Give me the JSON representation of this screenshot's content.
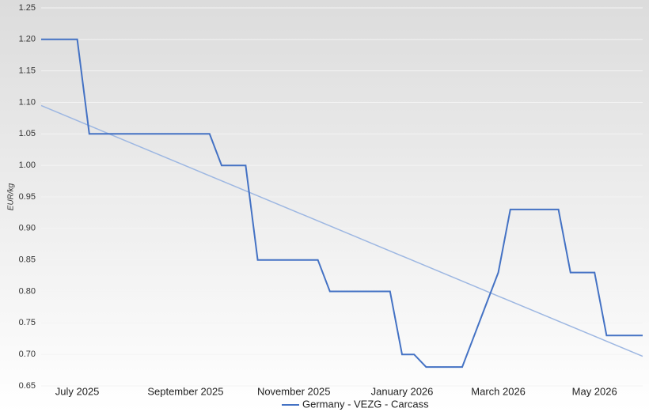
{
  "chart_data": {
    "type": "line",
    "y_label": "EUR/kg",
    "categories": [
      null,
      null,
      null,
      "July 2025",
      null,
      null,
      null,
      null,
      null,
      null,
      null,
      null,
      "September 2025",
      null,
      null,
      null,
      null,
      null,
      null,
      null,
      null,
      "November 2025",
      null,
      null,
      null,
      null,
      null,
      null,
      null,
      null,
      "January 2026",
      null,
      null,
      null,
      null,
      null,
      null,
      null,
      "March 2026",
      null,
      null,
      null,
      null,
      null,
      null,
      null,
      "May 2026",
      null,
      null,
      null,
      null
    ],
    "series": [
      {
        "name": "Germany - VEZG - Carcass",
        "color": "#4472c4",
        "values": [
          1.2,
          1.2,
          1.2,
          1.2,
          1.05,
          1.05,
          1.05,
          1.05,
          1.05,
          1.05,
          1.05,
          1.05,
          1.05,
          1.05,
          1.05,
          1.0,
          1.0,
          1.0,
          0.85,
          0.85,
          0.85,
          0.85,
          0.85,
          0.85,
          0.8,
          0.8,
          0.8,
          0.8,
          0.8,
          0.8,
          0.7,
          0.7,
          0.68,
          0.68,
          0.68,
          0.68,
          0.73,
          0.78,
          0.83,
          0.93,
          0.93,
          0.93,
          0.93,
          0.93,
          0.83,
          0.83,
          0.83,
          0.73,
          0.73,
          0.73,
          0.73
        ]
      }
    ],
    "trend": {
      "start": 1.095,
      "end": 0.697,
      "color": "#9db7e2"
    },
    "ylim": [
      0.65,
      1.25
    ],
    "yticks": [
      0.65,
      {
        "value": 0.7,
        "label": "0.70"
      },
      0.75,
      {
        "value": 0.8,
        "label": "0.80"
      },
      0.85,
      {
        "value": 0.9,
        "label": "0.90"
      },
      0.95,
      {
        "value": 1.0,
        "label": "1.00"
      },
      1.05,
      {
        "value": 1.1,
        "label": "1.10"
      },
      1.15,
      {
        "value": 1.2,
        "label": "1.20"
      },
      1.25
    ],
    "grid": true,
    "legend": "bottom"
  }
}
